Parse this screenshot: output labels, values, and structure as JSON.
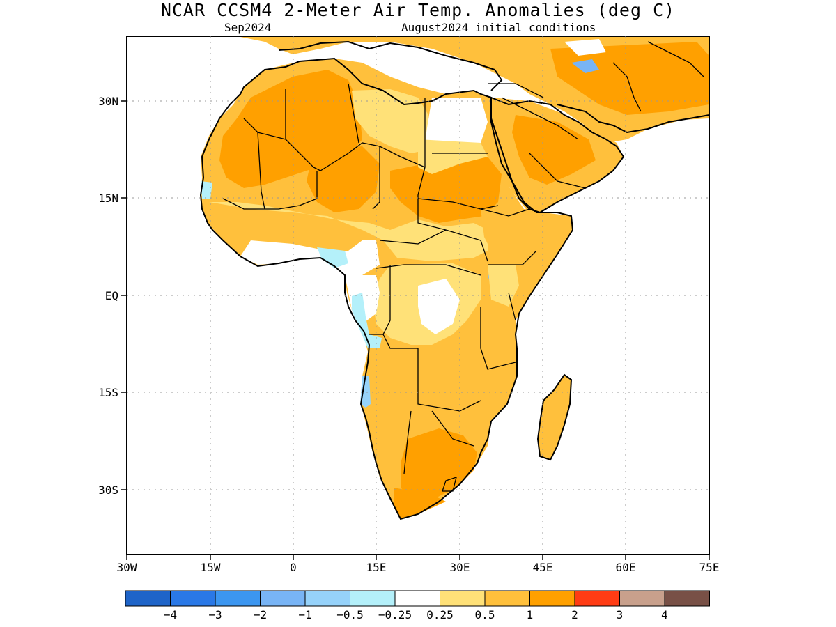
{
  "title": "NCAR_CCSM4 2-Meter Air Temp. Anomalies (deg C)",
  "subtitle_left": "Sep2024",
  "subtitle_right": "August2024 initial conditions",
  "map": {
    "lon_range": [
      -30,
      75
    ],
    "lat_range": [
      -40,
      40
    ],
    "x_ticks": [
      "30W",
      "15W",
      "0",
      "15E",
      "30E",
      "45E",
      "60E",
      "75E"
    ],
    "y_ticks": [
      "30N",
      "15N",
      "EQ",
      "15S",
      "30S"
    ],
    "grid": "dotted"
  },
  "colorbar": {
    "colors": [
      "#1e64c8",
      "#2a78e6",
      "#3c96f0",
      "#78b4f5",
      "#96d2fa",
      "#b4f0fa",
      "#ffffff",
      "#ffe178",
      "#ffc03c",
      "#ffa000",
      "#ff3c14",
      "#c8a08c",
      "#785046"
    ],
    "labels": [
      "-4",
      "-3",
      "-2",
      "-1",
      "-0.5",
      "-0.25",
      "0.25",
      "0.5",
      "1",
      "2",
      "3",
      "4"
    ]
  }
}
